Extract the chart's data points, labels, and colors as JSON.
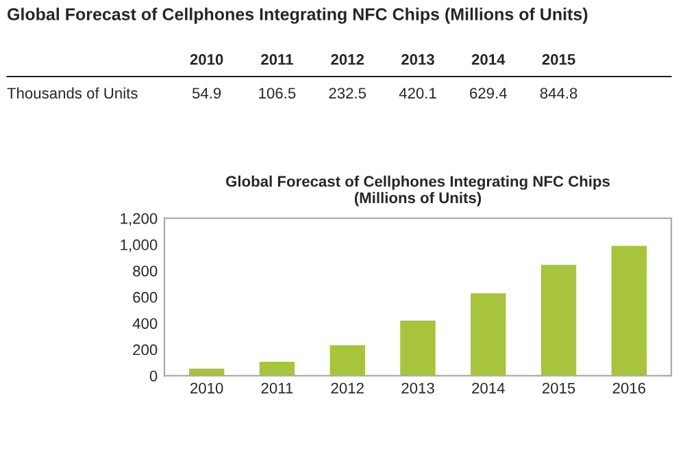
{
  "chart_data": {
    "type": "bar",
    "title": "Global Forecast of Cellphones Integrating NFC Chips\n(Millions of Units)",
    "categories": [
      "2010",
      "2011",
      "2012",
      "2013",
      "2014",
      "2015",
      "2016"
    ],
    "values": [
      54.9,
      106.5,
      232.5,
      420.1,
      629.4,
      844.8,
      990
    ],
    "value_labels": [
      "54.9",
      "106.5",
      "232.5",
      "420.1",
      "629.4",
      "844.8",
      null
    ],
    "color": "#a8c43c",
    "ylim": [
      0,
      1200
    ],
    "yticks": [
      0,
      {
        "value": 200,
        "label": "200"
      },
      {
        "value": 400,
        "label": "400"
      },
      {
        "value": 600,
        "label": "600"
      },
      {
        "value": 800,
        "label": "800"
      },
      {
        "value": 1000,
        "label": "1,000"
      },
      {
        "value": 1200,
        "label": "1,200"
      }
    ],
    "grid": false,
    "legend": false,
    "annotations": [
      "Global Forecast of Cellphones Integrating NFC Chips (Millions of Units)",
      "Thousands of Units"
    ]
  }
}
